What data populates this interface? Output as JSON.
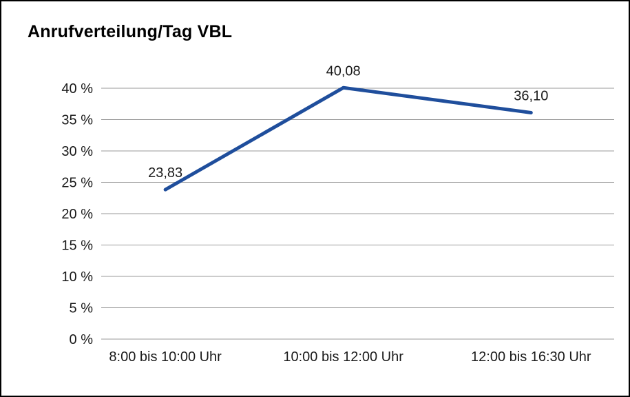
{
  "title": "Anrufverteilung/Tag VBL",
  "chart_data": {
    "type": "line",
    "title": "Anrufverteilung/Tag VBL",
    "categories": [
      "8:00 bis 10:00 Uhr",
      "10:00 bis 12:00 Uhr",
      "12:00 bis 16:30 Uhr"
    ],
    "values": [
      23.83,
      40.08,
      36.1
    ],
    "value_labels": [
      "23,83",
      "40,08",
      "36,10"
    ],
    "xlabel": "",
    "ylabel": "",
    "ylim": [
      0,
      40
    ],
    "ytick_step": 5,
    "ytick_suffix": " %",
    "grid": true,
    "legend": "none",
    "colors": {
      "line": "#1f4e9c",
      "grid": "#999999",
      "text": "#1a1a1a",
      "background": "#ffffff",
      "border": "#000000"
    }
  }
}
